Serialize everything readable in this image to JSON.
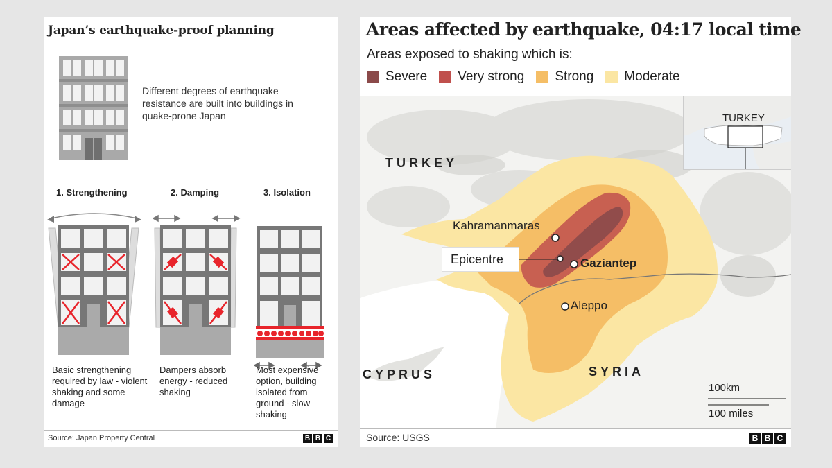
{
  "left": {
    "title": "Japan’s earthquake-proof planning",
    "intro": "Different degrees of earthquake resistance are built into buildings in quake-prone Japan",
    "methods": [
      {
        "title": "1. Strengthening",
        "desc": "Basic strengthening required by law - violent shaking and some damage"
      },
      {
        "title": "2. Damping",
        "desc": "Dampers absorb energy -  reduced shaking"
      },
      {
        "title": "3. Isolation",
        "desc": "Most expensive option, building isolated from ground - slow shaking"
      }
    ],
    "source": "Source: Japan Property Central"
  },
  "right": {
    "title": "Areas affected by earthquake, 04:17 local time",
    "subtitle": "Areas exposed to shaking which is:",
    "legend": [
      {
        "label": "Severe",
        "color": "#8b4a4a"
      },
      {
        "label": "Very strong",
        "color": "#c0504d"
      },
      {
        "label": "Strong",
        "color": "#f5be66"
      },
      {
        "label": "Moderate",
        "color": "#fbe6a3"
      }
    ],
    "countries": {
      "turkey": "TURKEY",
      "syria": "SYRIA",
      "cyprus": "CYPRUS"
    },
    "cities": {
      "kahramanmaras": "Kahramanmaras",
      "epicentre": "Epicentre",
      "gaziantep": "Gaziantep",
      "aleppo": "Aleppo"
    },
    "inset_label": "TURKEY",
    "scale": {
      "km": "100km",
      "miles": "100 miles"
    },
    "source": "Source: USGS"
  },
  "brand": {
    "letters": [
      "B",
      "B",
      "C"
    ]
  }
}
